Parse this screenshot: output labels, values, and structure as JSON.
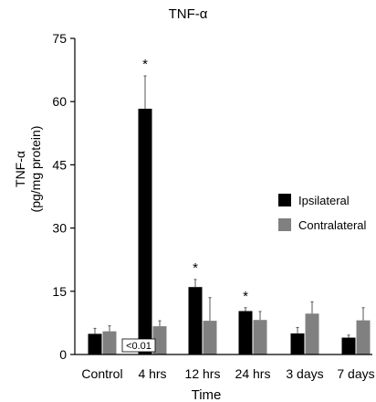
{
  "chart_data": {
    "type": "bar",
    "title": "TNF-α",
    "xlabel": "Time",
    "ylabel_line1": "TNF-α",
    "ylabel_line2": "(pg/mg protein)",
    "ylim": [
      0,
      75
    ],
    "yticks": [
      0,
      15,
      30,
      45,
      60,
      75
    ],
    "categories": [
      "Control",
      "4 hrs",
      "12 hrs",
      "24 hrs",
      "3 days",
      "7 days"
    ],
    "series": [
      {
        "name": "Ipsilateral",
        "color": "#000000",
        "values": [
          4.9,
          58.3,
          16.0,
          10.3,
          5.0,
          4.0
        ],
        "errors": [
          1.3,
          7.8,
          1.8,
          0.8,
          1.4,
          0.6
        ]
      },
      {
        "name": "Contralateral",
        "color": "#808080",
        "values": [
          5.5,
          6.7,
          8.0,
          8.2,
          9.7,
          8.1
        ],
        "errors": [
          1.3,
          1.3,
          5.5,
          2.0,
          2.8,
          3.0
        ]
      }
    ],
    "significance_markers": [
      "",
      "*",
      "*",
      "*",
      "",
      ""
    ],
    "annotation": {
      "category_index": 1,
      "text": "<0.01"
    },
    "legend_position": "right"
  }
}
